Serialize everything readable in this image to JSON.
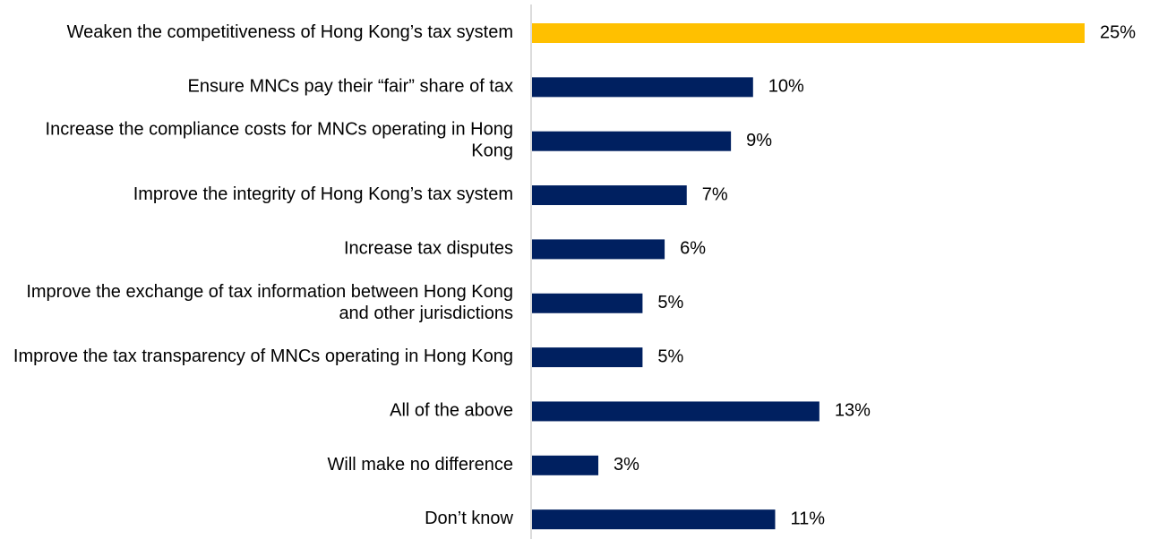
{
  "chart_data": {
    "type": "bar",
    "orientation": "horizontal",
    "categories": [
      "Weaken the competitiveness of Hong Kong’s tax system",
      "Ensure MNCs pay their “fair” share of tax",
      "Increase the compliance costs for MNCs operating in Hong Kong",
      "Improve the integrity of Hong Kong’s tax system",
      "Increase tax disputes",
      "Improve the exchange of tax information between Hong Kong and other jurisdictions",
      "Improve the tax transparency of MNCs operating in Hong Kong",
      "All of the above",
      "Will make no difference",
      "Don’t know"
    ],
    "values": [
      25,
      10,
      9,
      7,
      6,
      5,
      5,
      13,
      3,
      11
    ],
    "value_labels": [
      "25%",
      "10%",
      "9%",
      "7%",
      "6%",
      "5%",
      "5%",
      "13%",
      "3%",
      "11%"
    ],
    "colors": [
      "#FFC000",
      "#002060",
      "#002060",
      "#002060",
      "#002060",
      "#002060",
      "#002060",
      "#002060",
      "#002060",
      "#002060"
    ]
  }
}
